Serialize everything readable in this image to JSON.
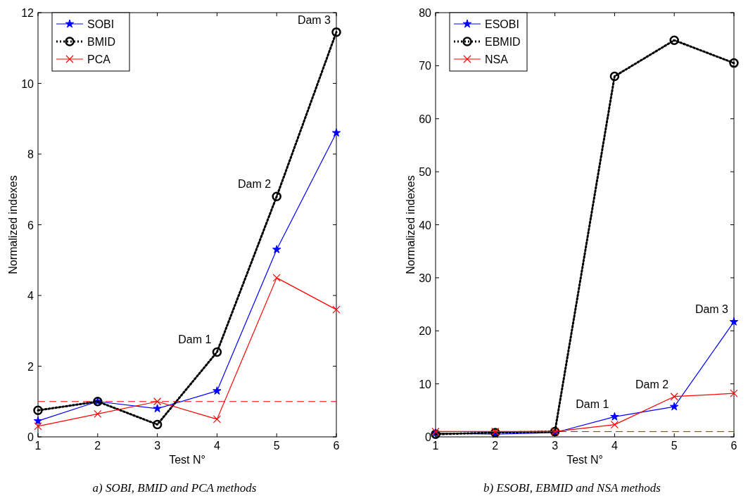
{
  "chart_data": [
    {
      "type": "line",
      "xlabel": "Test N°",
      "ylabel": "Normalized indexes",
      "x": [
        1,
        2,
        3,
        4,
        5,
        6
      ],
      "xlim": [
        1,
        6
      ],
      "xticks": [
        1,
        2,
        3,
        4,
        5,
        6
      ],
      "ylim": [
        0,
        12
      ],
      "yticks": [
        0,
        2,
        4,
        6,
        8,
        10,
        12
      ],
      "legend": "top left",
      "grid": false,
      "series": [
        {
          "name": "SOBI",
          "color": "#0000ff",
          "marker": "star",
          "line_style": "solid",
          "values": [
            0.45,
            1.0,
            0.8,
            1.3,
            5.3,
            8.6
          ]
        },
        {
          "name": "BMID",
          "color": "#000000",
          "marker": "circle",
          "line_style": "dotted",
          "values": [
            0.75,
            1.0,
            0.35,
            2.4,
            6.8,
            11.45
          ]
        },
        {
          "name": "PCA",
          "color": "#ff0000",
          "marker": "cross",
          "line_style": "solid",
          "values": [
            0.3,
            0.65,
            1.0,
            0.5,
            4.5,
            3.6
          ]
        }
      ],
      "ref_lines": [
        {
          "axis": "y",
          "value": 1,
          "color": "#ff0000",
          "line_style": "dashed"
        }
      ],
      "annotations": [
        {
          "text": "Dam 1",
          "x": 4,
          "y": 2.4
        },
        {
          "text": "Dam 2",
          "x": 5,
          "y": 6.8
        },
        {
          "text": "Dam 3",
          "x": 6,
          "y": 11.45
        },
        "a) SOBI, BMID and PCA methods"
      ]
    },
    {
      "type": "line",
      "xlabel": "Test N°",
      "ylabel": "Normalized indexes",
      "x": [
        1,
        2,
        3,
        4,
        5,
        6
      ],
      "xlim": [
        1,
        6
      ],
      "xticks": [
        1,
        2,
        3,
        4,
        5,
        6
      ],
      "ylim": [
        0,
        80
      ],
      "yticks": [
        0,
        10,
        20,
        30,
        40,
        50,
        60,
        70,
        80
      ],
      "legend": "top left",
      "grid": false,
      "series": [
        {
          "name": "ESOBI",
          "color": "#0000ff",
          "marker": "star",
          "line_style": "solid",
          "values": [
            0.7,
            0.5,
            0.8,
            3.8,
            5.7,
            21.7
          ]
        },
        {
          "name": "EBMID",
          "color": "#000000",
          "marker": "circle",
          "line_style": "dotted",
          "values": [
            0.5,
            0.8,
            1.0,
            68,
            74.8,
            70.5
          ]
        },
        {
          "name": "NSA",
          "color": "#ff0000",
          "marker": "cross",
          "line_style": "solid",
          "values": [
            1.0,
            1.0,
            1.0,
            2.3,
            7.6,
            8.2
          ]
        }
      ],
      "ref_lines": [
        {
          "axis": "y",
          "value": 1,
          "color": "#ff0000",
          "line_style": "dashed"
        }
      ],
      "annotations": [
        {
          "text": "Dam 1",
          "x": 4,
          "y": 3.8
        },
        {
          "text": "Dam 2",
          "x": 5,
          "y": 7.6
        },
        {
          "text": "Dam 3",
          "x": 6,
          "y": 21.7
        },
        "b) ESOBI, EBMID and NSA methods"
      ]
    }
  ]
}
